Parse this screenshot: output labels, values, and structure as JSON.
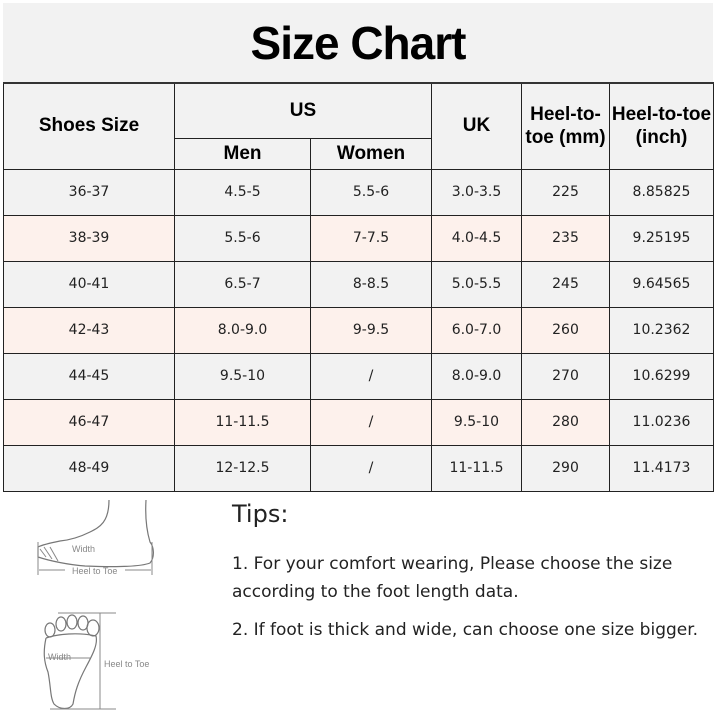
{
  "title": "Size Chart",
  "headers": {
    "shoes_size": "Shoes Size",
    "us": "US",
    "men": "Men",
    "women": "Women",
    "uk": "UK",
    "heel_mm": "Heel-to-toe (mm)",
    "heel_inch": "Heel-to-toe (inch)"
  },
  "rows": [
    [
      "36-37",
      "4.5-5",
      "5.5-6",
      "3.0-3.5",
      "225",
      "8.85825"
    ],
    [
      "38-39",
      "5.5-6",
      "7-7.5",
      "4.0-4.5",
      "235",
      "9.25195"
    ],
    [
      "40-41",
      "6.5-7",
      "8-8.5",
      "5.0-5.5",
      "245",
      "9.64565"
    ],
    [
      "42-43",
      "8.0-9.0",
      "9-9.5",
      "6.0-7.0",
      "260",
      "10.2362"
    ],
    [
      "44-45",
      "9.5-10",
      "/",
      "8.0-9.0",
      "270",
      "10.6299"
    ],
    [
      "46-47",
      "11-11.5",
      "/",
      "9.5-10",
      "280",
      "11.0236"
    ],
    [
      "48-49",
      "12-12.5",
      "/",
      "11-11.5",
      "290",
      "11.4173"
    ]
  ],
  "diagram": {
    "width_label": "Width",
    "heel_to_toe_label": "Heel to Toe"
  },
  "tips": {
    "heading": "Tips:",
    "items": [
      "1. For your comfort wearing, Please choose the size according to the foot length data.",
      "2. If foot is thick and wide, can choose one size bigger."
    ]
  },
  "colors": {
    "background": "#f2f2f2",
    "row_tint": "#fdf1ec",
    "border": "#222222"
  }
}
